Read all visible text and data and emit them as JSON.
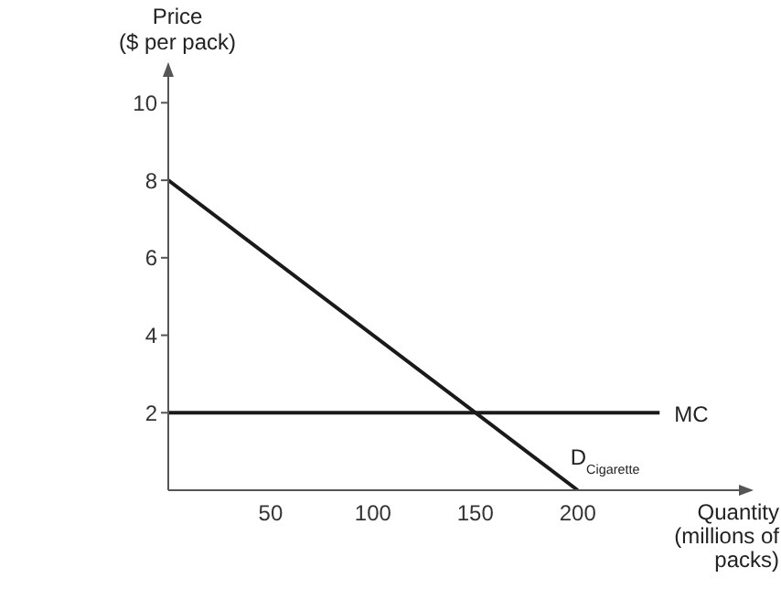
{
  "chart_data": {
    "type": "line",
    "xlabel": "Quantity (millions of packs)",
    "ylabel": "Price ($ per pack)",
    "series": [
      {
        "name": "D$_{Cigarette}$",
        "color": "#1a1a1a",
        "x": [
          0,
          200
        ],
        "values": [
          8,
          0
        ]
      },
      {
        "name": "MC",
        "color": "#1a1a1a",
        "x": [
          0,
          240
        ],
        "values": [
          2,
          2
        ]
      }
    ],
    "xlim": [
      0,
      285
    ],
    "xticks": [
      50,
      100,
      150,
      200
    ],
    "ylim": [
      0,
      11
    ],
    "yticks": [
      2,
      4,
      6,
      8,
      10
    ],
    "grid": false,
    "legend": false,
    "marker": "none",
    "line_style": "solid"
  }
}
